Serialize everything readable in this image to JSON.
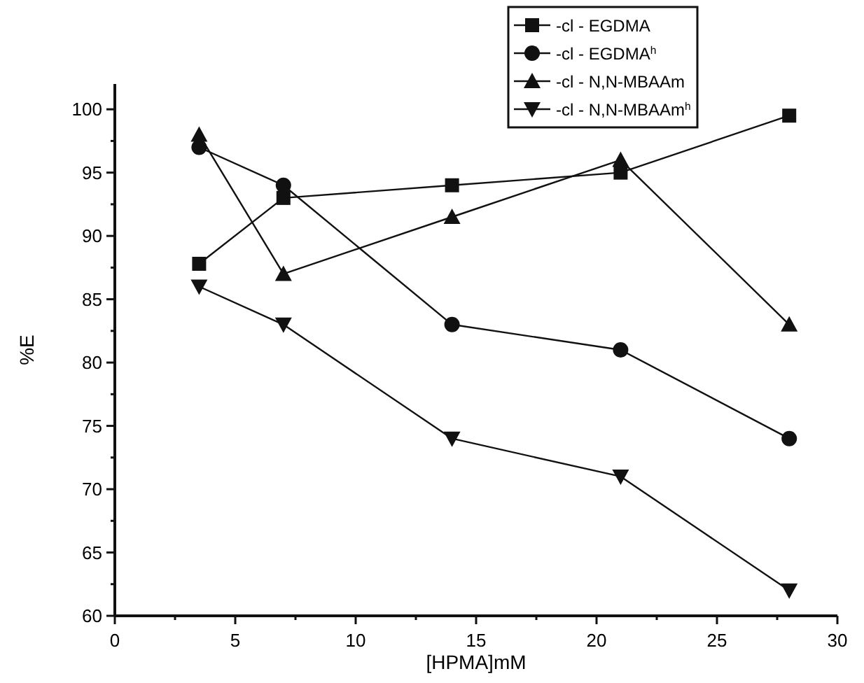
{
  "chart_data": {
    "type": "line",
    "xlabel": "[HPMA]mM",
    "ylabel": "%E",
    "x": [
      3.5,
      7,
      14,
      21,
      28
    ],
    "xlim": [
      0,
      30
    ],
    "xticks": [
      0,
      {
        "value": 2.5,
        "label": null
      },
      5,
      {
        "value": 7.5,
        "label": null
      },
      10,
      {
        "value": 12.5,
        "label": null
      },
      15,
      {
        "value": 17.5,
        "label": null
      },
      20,
      {
        "value": 22.5,
        "label": null
      },
      25,
      {
        "value": 27.5,
        "label": null
      },
      30
    ],
    "ylim": [
      60,
      102
    ],
    "yticks": [
      60,
      {
        "value": 62.5,
        "label": null
      },
      65,
      {
        "value": 67.5,
        "label": null
      },
      70,
      {
        "value": 72.5,
        "label": null
      },
      75,
      {
        "value": 77.5,
        "label": null
      },
      80,
      {
        "value": 82.5,
        "label": null
      },
      85,
      {
        "value": 87.5,
        "label": null
      },
      90,
      {
        "value": 92.5,
        "label": null
      },
      95,
      {
        "value": 97.5,
        "label": null
      },
      100
    ],
    "grid": false,
    "legend": "top right",
    "line_style": "solid",
    "series": [
      {
        "name": "-cl - EGDMA",
        "color": "#111111",
        "marker": "square",
        "values": [
          87.8,
          93,
          94,
          95,
          99.5
        ]
      },
      {
        "name": "-cl - EGDMA$^{h}$",
        "color": "#111111",
        "marker": "circle",
        "values": [
          97,
          94,
          83,
          81,
          74
        ]
      },
      {
        "name": "-cl - N,N-MBAAm",
        "color": "#111111",
        "marker": "triangle",
        "values": [
          98,
          87,
          91.5,
          96,
          83
        ]
      },
      {
        "name": "-cl - N,N-MBAAm$^{h}$",
        "color": "#111111",
        "marker": "triangle-down",
        "values": [
          86,
          83,
          74,
          71,
          62
        ]
      }
    ]
  }
}
